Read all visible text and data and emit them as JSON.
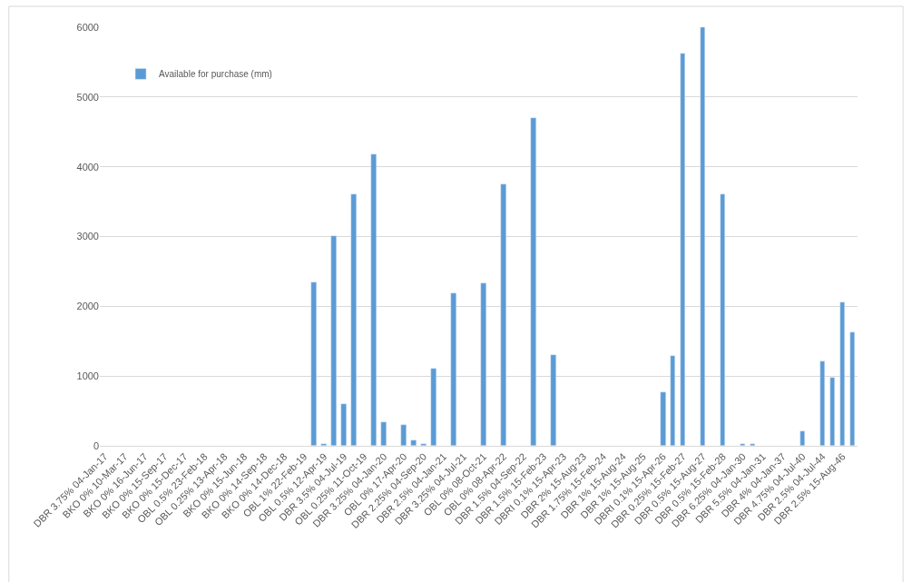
{
  "chart_data": {
    "type": "bar",
    "categories": [
      "DBR 3.75% 04-Jan-17",
      null,
      "BKO 0% 10-Mar-17",
      null,
      "BKO 0% 16-Jun-17",
      null,
      "BKO 0% 15-Sep-17",
      null,
      "BKO 0% 15-Dec-17",
      null,
      "OBL 0.5% 23-Feb-18",
      null,
      "OBL 0.25% 13-Apr-18",
      null,
      "BKO 0% 15-Jun-18",
      null,
      "BKO 0% 14-Sep-18",
      null,
      "BKO 0% 14-Dec-18",
      null,
      "OBL 1% 22-Feb-19",
      null,
      "OBL 0.5% 12-Apr-19",
      null,
      "DBR 3.5% 04-Jul-19",
      null,
      "OBL 0.25% 11-Oct-19",
      null,
      "DBR 3.25% 04-Jan-20",
      null,
      "OBL 0% 17-Apr-20",
      null,
      "DBR 2.25% 04-Sep-20",
      null,
      "DBR 2.5% 04-Jan-21",
      null,
      "DBR 3.25% 04-Jul-21",
      null,
      "OBL 0% 08-Oct-21",
      null,
      "OBL 0% 08-Apr-22",
      null,
      "DBR 1.5% 04-Sep-22",
      null,
      "DBR 1.5% 15-Feb-23",
      null,
      "DBRI 0.1% 15-Apr-23",
      null,
      "DBR 2% 15-Aug-23",
      null,
      "DBR 1.75% 15-Feb-24",
      null,
      "DBR 1% 15-Aug-24",
      null,
      "DBR 1% 15-Aug-25",
      null,
      "DBRI 0.1% 15-Apr-26",
      null,
      "DBR 0.25% 15-Feb-27",
      null,
      "DBR 0.5% 15-Aug-27",
      null,
      "DBR 0.5% 15-Feb-28",
      null,
      "DBR 6.25% 04-Jan-30",
      null,
      "DBR 5.5% 04-Jan-31",
      null,
      "DBR 4% 04-Jan-37",
      null,
      "DBR 4.75% 04-Jul-40",
      null,
      "DBR 2.5% 04-Jul-44",
      null,
      "DBR 2.5% 15-Aug-46",
      null
    ],
    "series": [
      {
        "name": "Available for purchase (mm)",
        "color": "#5b9bd5",
        "values": [
          null,
          null,
          null,
          null,
          null,
          null,
          null,
          null,
          null,
          null,
          null,
          null,
          null,
          null,
          null,
          null,
          null,
          null,
          null,
          null,
          null,
          2340,
          20,
          3010,
          600,
          3600,
          null,
          4180,
          340,
          null,
          300,
          80,
          20,
          1100,
          null,
          2190,
          null,
          null,
          2330,
          null,
          3750,
          null,
          null,
          4700,
          null,
          1300,
          null,
          null,
          null,
          null,
          null,
          null,
          null,
          null,
          null,
          null,
          770,
          1290,
          5620,
          null,
          6000,
          null,
          3610,
          null,
          20,
          20,
          null,
          null,
          null,
          null,
          210,
          null,
          1210,
          980,
          2060,
          1630
        ]
      }
    ],
    "ylim": [
      0,
      6000
    ],
    "yticks": [
      0,
      1000,
      2000,
      3000,
      4000,
      5000,
      6000
    ],
    "grid": "y",
    "legend": "top left"
  }
}
